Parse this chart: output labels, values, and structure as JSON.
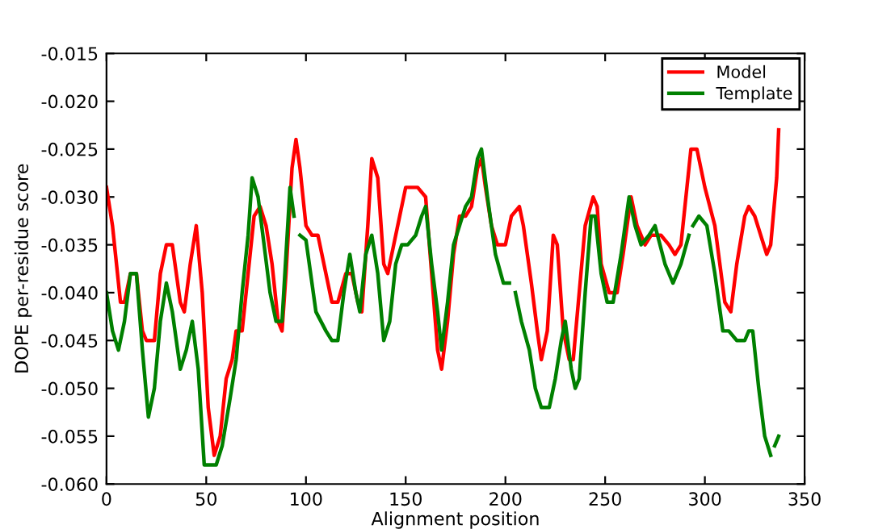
{
  "chart_data": {
    "type": "line",
    "xlabel": "Alignment position",
    "ylabel": "DOPE per-residue score",
    "xlim": [
      0,
      350
    ],
    "ylim": [
      -0.06,
      -0.015
    ],
    "xticks": [
      0,
      50,
      100,
      150,
      200,
      250,
      300,
      350
    ],
    "yticks": [
      {
        "value": -0.06,
        "label": "-0.060"
      },
      {
        "value": -0.055,
        "label": "-0.055"
      },
      {
        "value": -0.05,
        "label": "-0.050"
      },
      {
        "value": -0.045,
        "label": "-0.045"
      },
      {
        "value": -0.04,
        "label": "-0.040"
      },
      {
        "value": -0.035,
        "label": "-0.035"
      },
      {
        "value": -0.03,
        "label": "-0.030"
      },
      {
        "value": -0.025,
        "label": "-0.025"
      },
      {
        "value": -0.02,
        "label": "-0.020"
      },
      {
        "value": -0.015,
        "label": "-0.015"
      }
    ],
    "grid": false,
    "legend": "top right",
    "marker": "none",
    "line_style": "solid",
    "series": [
      {
        "name": "Model",
        "color": "#ff0000",
        "x": [
          0,
          3,
          7,
          9,
          12,
          15,
          18,
          20,
          24,
          27,
          30,
          33,
          37,
          39,
          42,
          45,
          48,
          51,
          54,
          57,
          60,
          63,
          65,
          68,
          71,
          74,
          77,
          80,
          83,
          86,
          88,
          90,
          93,
          95,
          97,
          100,
          103,
          106,
          110,
          113,
          116,
          120,
          123,
          126,
          128,
          131,
          133,
          136,
          139,
          141,
          144,
          147,
          150,
          153,
          156,
          160,
          163,
          166,
          168,
          171,
          174,
          177,
          180,
          183,
          186,
          188,
          190,
          193,
          196,
          200,
          203,
          207,
          209,
          213,
          216,
          218,
          221,
          224,
          226,
          229,
          232,
          234,
          237,
          240,
          244,
          246,
          248,
          252,
          256,
          259,
          263,
          266,
          270,
          273,
          278,
          282,
          285,
          288,
          291,
          293,
          296,
          300,
          305,
          310,
          313,
          316,
          320,
          322,
          325,
          328,
          331,
          333,
          336,
          337
        ],
        "values": [
          -0.029,
          -0.033,
          -0.041,
          -0.041,
          -0.038,
          -0.038,
          -0.044,
          -0.045,
          -0.045,
          -0.038,
          -0.035,
          -0.035,
          -0.041,
          -0.042,
          -0.037,
          -0.033,
          -0.04,
          -0.052,
          -0.057,
          -0.055,
          -0.049,
          -0.047,
          -0.044,
          -0.044,
          -0.038,
          -0.032,
          -0.031,
          -0.033,
          -0.037,
          -0.043,
          -0.044,
          -0.038,
          -0.027,
          -0.024,
          -0.027,
          -0.033,
          -0.034,
          -0.034,
          -0.038,
          -0.041,
          -0.041,
          -0.038,
          -0.038,
          -0.041,
          -0.042,
          -0.033,
          -0.026,
          -0.028,
          -0.037,
          -0.038,
          -0.035,
          -0.032,
          -0.029,
          -0.029,
          -0.029,
          -0.03,
          -0.038,
          -0.046,
          -0.048,
          -0.043,
          -0.036,
          -0.032,
          -0.032,
          -0.031,
          -0.027,
          -0.026,
          -0.029,
          -0.033,
          -0.035,
          -0.035,
          -0.032,
          -0.031,
          -0.033,
          -0.039,
          -0.044,
          -0.047,
          -0.044,
          -0.034,
          -0.035,
          -0.044,
          -0.047,
          -0.047,
          -0.04,
          -0.033,
          -0.03,
          -0.031,
          -0.037,
          -0.04,
          -0.04,
          -0.036,
          -0.03,
          -0.033,
          -0.035,
          -0.034,
          -0.034,
          -0.035,
          -0.036,
          -0.035,
          -0.029,
          -0.025,
          -0.025,
          -0.029,
          -0.033,
          -0.041,
          -0.042,
          -0.037,
          -0.032,
          -0.031,
          -0.032,
          -0.034,
          -0.036,
          -0.035,
          -0.028,
          -0.023
        ]
      },
      {
        "name": "Template",
        "color": "#008000",
        "x": [
          0,
          3,
          6,
          9,
          12,
          15,
          18,
          21,
          24,
          27,
          30,
          33,
          37,
          40,
          43,
          46,
          49,
          55,
          58,
          62,
          65,
          68,
          71,
          73,
          76,
          79,
          82,
          85,
          88,
          90,
          92,
          94,
          95,
          97,
          100,
          105,
          110,
          113,
          116,
          119,
          122,
          125,
          127,
          130,
          133,
          136,
          139,
          142,
          145,
          148,
          151,
          155,
          158,
          160,
          163,
          166,
          168,
          171,
          174,
          177,
          180,
          183,
          186,
          188,
          191,
          195,
          199,
          202,
          203,
          205,
          208,
          212,
          215,
          218,
          222,
          225,
          228,
          230,
          233,
          235,
          237,
          240,
          243,
          245,
          248,
          251,
          254,
          258,
          262,
          265,
          268,
          272,
          275,
          280,
          284,
          288,
          292,
          293,
          294,
          297,
          301,
          305,
          309,
          312,
          316,
          320,
          322,
          324,
          327,
          330,
          333,
          334,
          335,
          337
        ],
        "values": [
          -0.04,
          -0.044,
          -0.046,
          -0.043,
          -0.038,
          -0.038,
          -0.046,
          -0.053,
          -0.05,
          -0.043,
          -0.039,
          -0.042,
          -0.048,
          -0.046,
          -0.043,
          -0.048,
          -0.058,
          -0.058,
          -0.056,
          -0.051,
          -0.047,
          -0.04,
          -0.034,
          -0.028,
          -0.03,
          -0.035,
          -0.04,
          -0.043,
          -0.043,
          -0.036,
          -0.029,
          -0.032,
          null,
          -0.034,
          -0.0345,
          -0.042,
          -0.044,
          -0.045,
          -0.045,
          -0.04,
          -0.036,
          -0.04,
          -0.042,
          -0.036,
          -0.034,
          -0.038,
          -0.045,
          -0.043,
          -0.037,
          -0.035,
          -0.035,
          -0.034,
          -0.032,
          -0.031,
          -0.037,
          -0.042,
          -0.046,
          -0.041,
          -0.035,
          -0.033,
          -0.031,
          -0.03,
          -0.026,
          -0.025,
          -0.03,
          -0.036,
          -0.039,
          -0.039,
          null,
          -0.04,
          -0.043,
          -0.046,
          -0.05,
          -0.052,
          -0.052,
          -0.049,
          -0.045,
          -0.043,
          -0.048,
          -0.05,
          -0.049,
          -0.04,
          -0.032,
          -0.032,
          -0.038,
          -0.041,
          -0.041,
          -0.036,
          -0.03,
          -0.033,
          -0.035,
          -0.034,
          -0.033,
          -0.037,
          -0.039,
          -0.037,
          -0.034,
          null,
          -0.033,
          -0.032,
          -0.033,
          -0.038,
          -0.044,
          -0.044,
          -0.045,
          -0.045,
          -0.044,
          -0.044,
          -0.05,
          -0.055,
          -0.057,
          null,
          -0.056,
          -0.055
        ]
      }
    ]
  }
}
